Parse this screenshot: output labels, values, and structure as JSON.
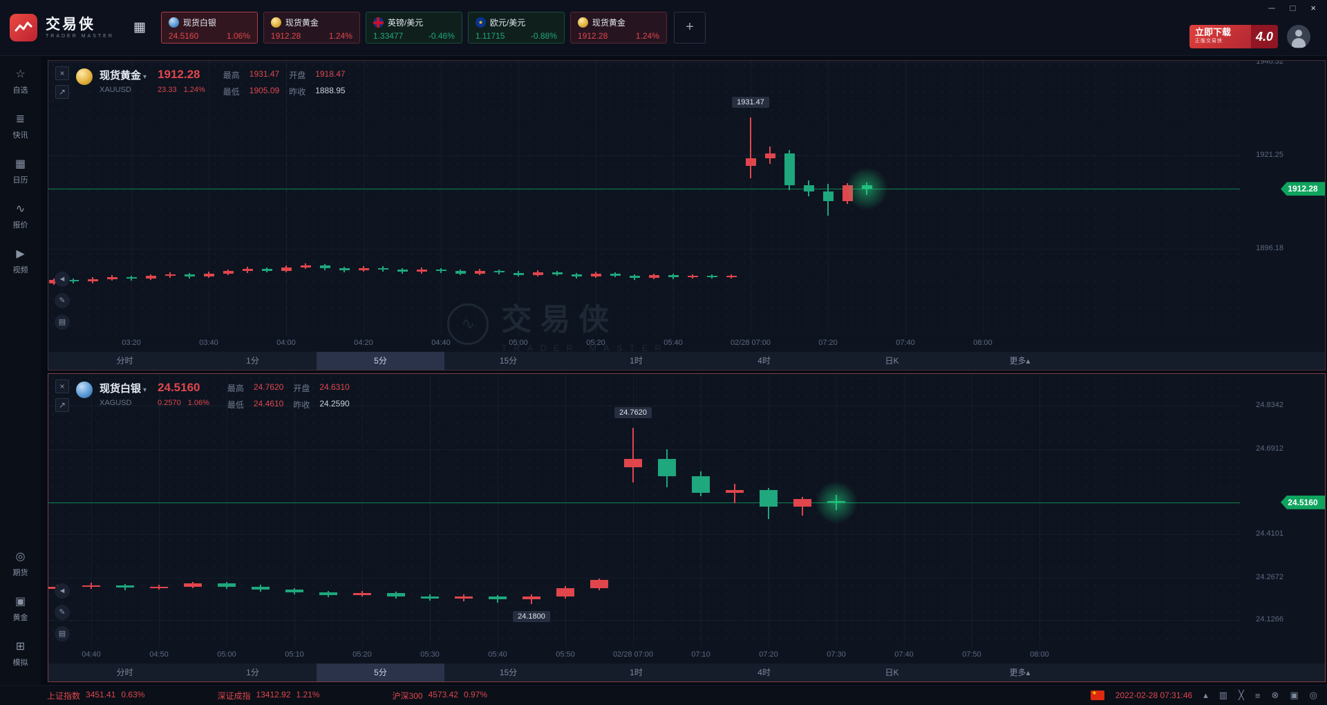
{
  "app": {
    "name": "交易侠",
    "subtitle": "TRADER MASTER"
  },
  "window_controls": {
    "minimize": "─",
    "maximize": "□",
    "close": "×"
  },
  "topbar": {
    "grid_icon": "▦",
    "tabs": [
      {
        "name": "现货白银",
        "price": "24.5160",
        "pct": "1.06%"
      },
      {
        "name": "现货黄金",
        "price": "1912.28",
        "pct": "1.24%"
      },
      {
        "name": "英镑/美元",
        "price": "1.33477",
        "pct": "-0.46%"
      },
      {
        "name": "欧元/美元",
        "price": "1.11715",
        "pct": "-0.88%"
      },
      {
        "name": "现货黄金",
        "price": "1912.28",
        "pct": "1.24%"
      }
    ],
    "add_button": "+",
    "download_banner": {
      "title": "立即下载",
      "subtitle": "正版交易侠",
      "version": "4.0"
    }
  },
  "sidebar": {
    "top": [
      {
        "glyph": "☆",
        "label": "自选"
      },
      {
        "glyph": "≣",
        "label": "快讯"
      },
      {
        "glyph": "▦",
        "label": "日历"
      },
      {
        "glyph": "∿",
        "label": "报价"
      },
      {
        "glyph": "▶",
        "label": "视频"
      }
    ],
    "bottom": [
      {
        "glyph": "◎",
        "label": "期货"
      },
      {
        "glyph": "▣",
        "label": "黄金"
      },
      {
        "glyph": "⊞",
        "label": "模拟"
      }
    ]
  },
  "watermark": {
    "logo": "∿",
    "title": "交易侠",
    "subtitle": "TRADER MASTER"
  },
  "panels": [
    {
      "name": "现货黄金",
      "dropdown": "▾",
      "code": "XAUUSD",
      "price": "1912.28",
      "change": "23.33",
      "pct": "1.24%",
      "close_button": "×",
      "expand_button": "↗",
      "stats": [
        {
          "label": "最高",
          "value": "1931.47"
        },
        {
          "label": "开盘",
          "value": "1918.47"
        },
        {
          "label": "最低",
          "value": "1905.09"
        },
        {
          "label": "昨收",
          "value": "1888.95"
        }
      ],
      "price_tag": "1912.28",
      "tools": [
        {
          "glyph": "◄"
        },
        {
          "glyph": "✎"
        },
        {
          "glyph": "▤"
        }
      ],
      "timeframes": [
        "分时",
        "1分",
        "5分",
        "15分",
        "1时",
        "4时",
        "日K",
        "更多▴"
      ],
      "selected_timeframe": "5分",
      "chart_data": {
        "type": "candlestick",
        "y_domain": [
          1873.0,
          1946.7
        ],
        "x0": 8,
        "dx": 28,
        "body_w": 15,
        "y_ticks": [
          "1946.32",
          "1921.25",
          "1896.18"
        ],
        "x_labels": [
          [
            4,
            "03:20"
          ],
          [
            8,
            "03:40"
          ],
          [
            12,
            "04:00"
          ],
          [
            16,
            "04:20"
          ],
          [
            20,
            "04:40"
          ],
          [
            24,
            "05:00"
          ],
          [
            28,
            "05:20"
          ],
          [
            32,
            "05:40"
          ],
          [
            36,
            "02/28 07:00"
          ],
          [
            40,
            "07:20"
          ],
          [
            44,
            "07:40"
          ],
          [
            48,
            "08:00"
          ]
        ],
        "price_line": 1912.28,
        "annotations": [
          [
            36,
            1931.47,
            "above",
            "1931.47"
          ]
        ],
        "glow_index": 42,
        "candles": [
          [
            1887.0,
            1888.3,
            1886.5,
            1887.8
          ],
          [
            1887.8,
            1888.2,
            1886.9,
            1887.4
          ],
          [
            1887.4,
            1888.6,
            1887.0,
            1888.0
          ],
          [
            1888.0,
            1889.1,
            1887.6,
            1888.6
          ],
          [
            1888.6,
            1889.0,
            1887.7,
            1888.2
          ],
          [
            1888.2,
            1889.4,
            1887.8,
            1888.9
          ],
          [
            1888.9,
            1889.9,
            1888.4,
            1889.4
          ],
          [
            1889.4,
            1889.8,
            1888.3,
            1888.8
          ],
          [
            1888.8,
            1890.1,
            1888.4,
            1889.6
          ],
          [
            1889.6,
            1890.7,
            1889.2,
            1890.2
          ],
          [
            1890.2,
            1891.3,
            1889.8,
            1890.8
          ],
          [
            1890.8,
            1891.2,
            1889.8,
            1890.3
          ],
          [
            1890.3,
            1891.7,
            1889.9,
            1891.2
          ],
          [
            1891.2,
            1892.3,
            1890.8,
            1891.8
          ],
          [
            1891.8,
            1892.2,
            1890.5,
            1891.0
          ],
          [
            1891.0,
            1891.4,
            1889.9,
            1890.4
          ],
          [
            1890.4,
            1891.6,
            1890.0,
            1891.1
          ],
          [
            1891.1,
            1891.5,
            1890.1,
            1890.6
          ],
          [
            1890.6,
            1891.0,
            1889.5,
            1890.0
          ],
          [
            1890.0,
            1891.2,
            1889.6,
            1890.7
          ],
          [
            1890.7,
            1891.1,
            1889.7,
            1890.2
          ],
          [
            1890.2,
            1890.6,
            1889.1,
            1889.6
          ],
          [
            1889.6,
            1890.8,
            1889.2,
            1890.3
          ],
          [
            1890.3,
            1890.7,
            1889.3,
            1889.8
          ],
          [
            1889.8,
            1890.2,
            1888.7,
            1889.2
          ],
          [
            1889.2,
            1890.4,
            1888.8,
            1889.9
          ],
          [
            1889.9,
            1890.3,
            1888.9,
            1889.4
          ],
          [
            1889.4,
            1889.8,
            1888.3,
            1888.8
          ],
          [
            1888.8,
            1890.0,
            1888.4,
            1889.5
          ],
          [
            1889.5,
            1889.9,
            1888.5,
            1889.0
          ],
          [
            1889.0,
            1889.4,
            1887.9,
            1888.4
          ],
          [
            1888.4,
            1889.6,
            1888.0,
            1889.1
          ],
          [
            1889.1,
            1889.5,
            1888.1,
            1888.6
          ],
          [
            1888.6,
            1889.4,
            1888.2,
            1889.0
          ],
          [
            1889.0,
            1889.3,
            1888.2,
            1888.7
          ],
          [
            1888.7,
            1889.4,
            1888.3,
            1888.95
          ],
          [
            1918.47,
            1931.47,
            1915.2,
            1920.6
          ],
          [
            1920.6,
            1923.6,
            1919.0,
            1921.9
          ],
          [
            1921.9,
            1922.8,
            1911.9,
            1913.3
          ],
          [
            1913.3,
            1914.6,
            1910.3,
            1911.6
          ],
          [
            1911.6,
            1913.6,
            1905.09,
            1909.0
          ],
          [
            1909.0,
            1913.8,
            1908.2,
            1913.2
          ],
          [
            1913.2,
            1914.0,
            1910.6,
            1912.28
          ]
        ]
      }
    },
    {
      "name": "现货白银",
      "dropdown": "▾",
      "code": "XAGUSD",
      "price": "24.5160",
      "change": "0.2570",
      "pct": "1.06%",
      "close_button": "×",
      "expand_button": "↗",
      "stats": [
        {
          "label": "最高",
          "value": "24.7620"
        },
        {
          "label": "开盘",
          "value": "24.6310"
        },
        {
          "label": "最低",
          "value": "24.4610"
        },
        {
          "label": "昨收",
          "value": "24.2590"
        }
      ],
      "price_tag": "24.5160",
      "tools": [
        {
          "glyph": "◄"
        },
        {
          "glyph": "✎"
        },
        {
          "glyph": "▤"
        }
      ],
      "timeframes": [
        "分时",
        "1分",
        "5分",
        "15分",
        "1时",
        "4时",
        "日K",
        "更多▴"
      ],
      "selected_timeframe": "5分",
      "chart_data": {
        "type": "candlestick",
        "y_domain": [
          24.0386,
          24.9396
        ],
        "x0": 13,
        "dx": 49,
        "body_w": 26,
        "y_ticks": [
          "24.8342",
          "24.6912",
          "24.4101",
          "24.2672",
          "24.1266"
        ],
        "x_labels": [
          [
            1,
            "04:40"
          ],
          [
            3,
            "04:50"
          ],
          [
            5,
            "05:00"
          ],
          [
            7,
            "05:10"
          ],
          [
            9,
            "05:20"
          ],
          [
            11,
            "05:30"
          ],
          [
            13,
            "05:40"
          ],
          [
            15,
            "05:50"
          ],
          [
            17,
            "02/28 07:00"
          ],
          [
            19,
            "07:10"
          ],
          [
            21,
            "07:20"
          ],
          [
            23,
            "07:30"
          ],
          [
            25,
            "07:40"
          ],
          [
            27,
            "07:50"
          ],
          [
            29,
            "08:00"
          ]
        ],
        "price_line": 24.516,
        "annotations": [
          [
            17,
            24.762,
            "above",
            "24.7620"
          ],
          [
            14,
            24.18,
            "below",
            "24.1800"
          ]
        ],
        "glow_index": 23,
        "candles": [
          [
            24.23,
            24.244,
            24.224,
            24.236
          ],
          [
            24.236,
            24.25,
            24.23,
            24.242
          ],
          [
            24.242,
            24.246,
            24.226,
            24.234
          ],
          [
            24.234,
            24.244,
            24.229,
            24.238
          ],
          [
            24.238,
            24.254,
            24.232,
            24.248
          ],
          [
            24.248,
            24.252,
            24.231,
            24.238
          ],
          [
            24.238,
            24.243,
            24.221,
            24.228
          ],
          [
            24.228,
            24.233,
            24.211,
            24.218
          ],
          [
            24.218,
            24.224,
            24.203,
            24.21
          ],
          [
            24.21,
            24.223,
            24.204,
            24.216
          ],
          [
            24.216,
            24.221,
            24.199,
            24.206
          ],
          [
            24.206,
            24.212,
            24.191,
            24.198
          ],
          [
            24.198,
            24.211,
            24.19,
            24.204
          ],
          [
            24.204,
            24.209,
            24.185,
            24.196
          ],
          [
            24.196,
            24.213,
            24.18,
            24.205
          ],
          [
            24.205,
            24.239,
            24.199,
            24.232
          ],
          [
            24.232,
            24.265,
            24.226,
            24.259
          ],
          [
            24.631,
            24.762,
            24.582,
            24.658
          ],
          [
            24.658,
            24.691,
            24.566,
            24.602
          ],
          [
            24.602,
            24.618,
            24.536,
            24.548
          ],
          [
            24.548,
            24.578,
            24.514,
            24.556
          ],
          [
            24.556,
            24.564,
            24.461,
            24.502
          ],
          [
            24.502,
            24.534,
            24.472,
            24.526
          ],
          [
            24.52,
            24.54,
            24.49,
            24.516
          ]
        ]
      }
    }
  ],
  "statusbar": {
    "indices": [
      {
        "name": "上证指数",
        "value": "3451.41",
        "pct": "0.63%"
      },
      {
        "name": "深证成指",
        "value": "13412.92",
        "pct": "1.21%"
      },
      {
        "name": "沪深300",
        "value": "4573.42",
        "pct": "0.97%"
      }
    ],
    "flag_star": "★",
    "datetime": "2022-02-28 07:31:46",
    "icons": [
      {
        "glyph": "▴"
      },
      {
        "glyph": "▥"
      },
      {
        "glyph": "╳"
      },
      {
        "glyph": "≡"
      },
      {
        "glyph": "⊗"
      },
      {
        "glyph": "▣"
      },
      {
        "glyph": "◎"
      }
    ]
  },
  "colors": {
    "up": "#e0464c",
    "down": "#1fa77d",
    "price_tag": "#0fa45e"
  }
}
